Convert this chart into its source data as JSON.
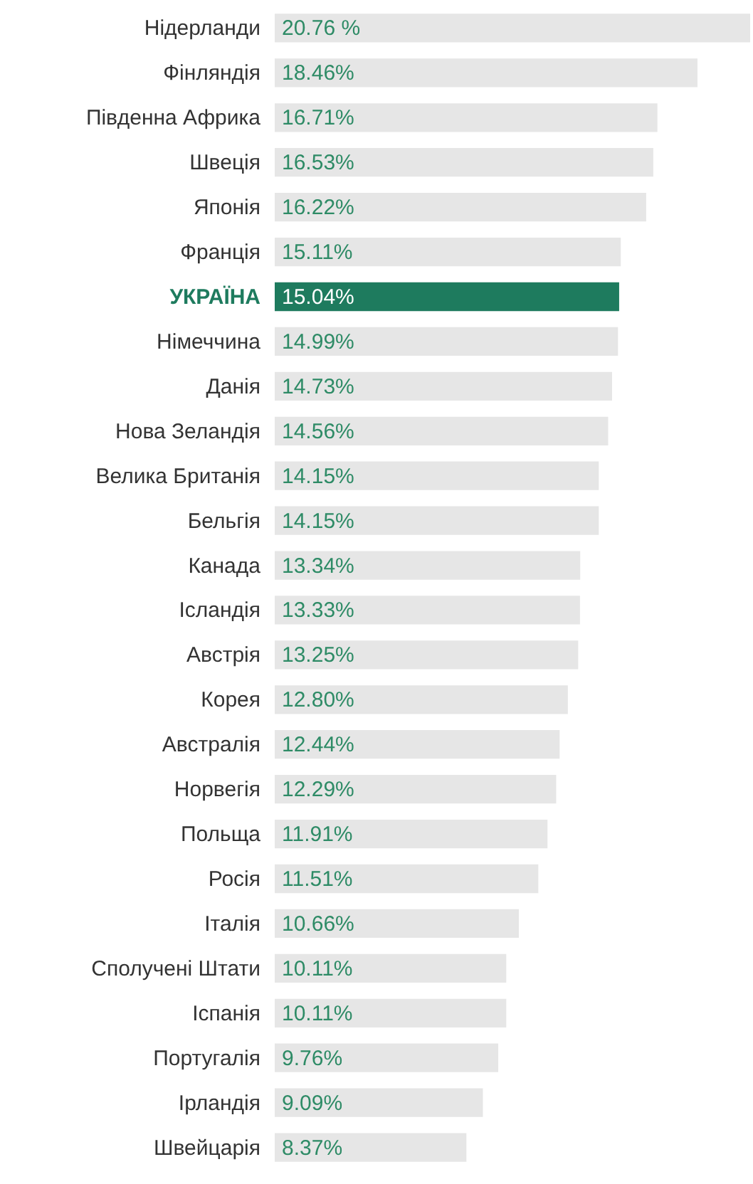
{
  "chart_data": {
    "type": "bar",
    "orientation": "horizontal",
    "categories": [
      "Нідерланди",
      "Фінляндія",
      "Південна Африка",
      "Швеція",
      "Японія",
      "Франція",
      "УКРАЇНА",
      "Німеччина",
      "Данія",
      "Нова Зеландія",
      "Велика Британія",
      "Бельгія",
      "Канада",
      "Ісландія",
      "Австрія",
      "Корея",
      "Австралія",
      "Норвегія",
      "Польща",
      "Росія",
      "Італія",
      "Сполучені Штати",
      "Іспанія",
      "Португалія",
      "Ірландія",
      "Швейцарія"
    ],
    "values": [
      20.76,
      18.46,
      16.71,
      16.53,
      16.22,
      15.11,
      15.04,
      14.99,
      14.73,
      14.56,
      14.15,
      14.15,
      13.34,
      13.33,
      13.25,
      12.8,
      12.44,
      12.29,
      11.91,
      11.51,
      10.66,
      10.11,
      10.11,
      9.76,
      9.09,
      8.37
    ],
    "value_labels": [
      "20.76 %",
      "18.46%",
      "16.71%",
      "16.53%",
      "16.22%",
      "15.11%",
      "15.04%",
      "14.99%",
      "14.73%",
      "14.56%",
      "14.15%",
      "14.15%",
      "13.34%",
      "13.33%",
      "13.25%",
      "12.80%",
      "12.44%",
      "12.29%",
      "11.91%",
      "11.51%",
      "10.66%",
      "10.11%",
      "10.11%",
      "9.76%",
      "9.09%",
      "8.37%"
    ],
    "colors": [
      "#e6e6e6",
      "#e6e6e6",
      "#e6e6e6",
      "#e6e6e6",
      "#e6e6e6",
      "#e6e6e6",
      "#1e7b5e",
      "#e6e6e6",
      "#e6e6e6",
      "#e6e6e6",
      "#e6e6e6",
      "#e6e6e6",
      "#e6e6e6",
      "#e6e6e6",
      "#e6e6e6",
      "#e6e6e6",
      "#e6e6e6",
      "#e6e6e6",
      "#e6e6e6",
      "#e6e6e6",
      "#e6e6e6",
      "#e6e6e6",
      "#e6e6e6",
      "#e6e6e6",
      "#e6e6e6",
      "#e6e6e6"
    ]
  }
}
